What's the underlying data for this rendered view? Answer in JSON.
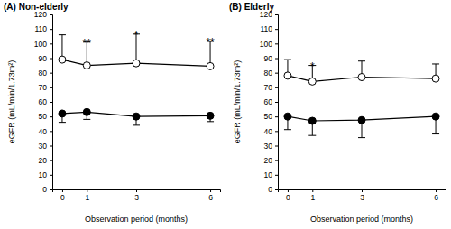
{
  "chart_data": [
    {
      "type": "line",
      "title": "(A) Non-elderly",
      "x_label": "Observation period (months)",
      "y_label": "eGFR (mL/min/1.73m²)",
      "x": [
        0,
        1,
        3,
        6
      ],
      "xlim": [
        -0.4,
        6.4
      ],
      "xticks": [
        0,
        1,
        3,
        6
      ],
      "ylim": [
        0,
        120
      ],
      "yticks": [
        0,
        10,
        20,
        30,
        40,
        50,
        60,
        70,
        80,
        90,
        100,
        110,
        120
      ],
      "grid": false,
      "series": [
        {
          "color": "#000000",
          "marker": "open-circle",
          "values": [
            89,
            85,
            86.5,
            84.5
          ],
          "error_plus": [
            17,
            16,
            20,
            17
          ]
        },
        {
          "color": "#000000",
          "marker": "filled-circle",
          "values": [
            52,
            53,
            50,
            50.5
          ],
          "error_minus": [
            6,
            5,
            6,
            4
          ]
        }
      ],
      "annotations": [
        {
          "x": 1,
          "text": "**"
        },
        {
          "x": 3,
          "text": "*"
        },
        {
          "x": 6,
          "text": "**"
        }
      ]
    },
    {
      "type": "line",
      "title": "(B) Elderly",
      "x_label": "Observation period (months)",
      "y_label": "eGFR (mL/min/1.73m²)",
      "x": [
        0,
        1,
        3,
        6
      ],
      "xlim": [
        -0.4,
        6.4
      ],
      "xticks": [
        0,
        1,
        3,
        6
      ],
      "ylim": [
        0,
        120
      ],
      "yticks": [
        0,
        10,
        20,
        30,
        40,
        50,
        60,
        70,
        80,
        90,
        100,
        110,
        120
      ],
      "grid": false,
      "series": [
        {
          "color": "#000000",
          "marker": "open-circle",
          "values": [
            78,
            74,
            77,
            76
          ],
          "error_plus": [
            11,
            11,
            11,
            10
          ]
        },
        {
          "color": "#000000",
          "marker": "filled-circle",
          "values": [
            50,
            47,
            47.5,
            50
          ],
          "error_minus": [
            9,
            10,
            12,
            12
          ]
        }
      ],
      "annotations": [
        {
          "x": 1,
          "text": "*"
        }
      ]
    }
  ]
}
